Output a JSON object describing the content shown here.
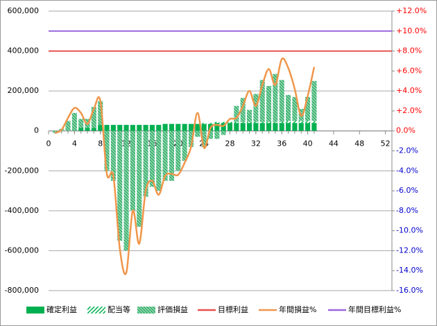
{
  "chart_data": {
    "type": "combo",
    "x": [
      1,
      2,
      3,
      4,
      5,
      6,
      7,
      8,
      9,
      10,
      11,
      12,
      13,
      14,
      15,
      16,
      17,
      18,
      19,
      20,
      21,
      22,
      23,
      24,
      25,
      26,
      27,
      28,
      29,
      30,
      31,
      32,
      33,
      34,
      35,
      36,
      37,
      38,
      39,
      40,
      41
    ],
    "xlim": [
      0,
      53
    ],
    "xticks": [
      0,
      4,
      8,
      12,
      16,
      20,
      24,
      28,
      32,
      36,
      40,
      44,
      48,
      52
    ],
    "ylim": [
      -800000,
      600000
    ],
    "yticks": [
      {
        "value": -800000,
        "label": "-800,000"
      },
      {
        "value": -600000,
        "label": "-600,000"
      },
      {
        "value": -400000,
        "label": "-400,000"
      },
      {
        "value": -200000,
        "label": "-200,000"
      },
      0,
      {
        "value": 200000,
        "label": "200,000"
      },
      {
        "value": 400000,
        "label": "400,000"
      },
      {
        "value": 600000,
        "label": "600,000"
      }
    ],
    "y2lim": [
      -16,
      12
    ],
    "y2ticks": [
      {
        "value": -16,
        "label": "-16.0%"
      },
      {
        "value": -14,
        "label": "-14.0%"
      },
      {
        "value": -12,
        "label": "-12.0%"
      },
      {
        "value": -10,
        "label": "-10.0%"
      },
      {
        "value": -8,
        "label": "-8.0%"
      },
      {
        "value": -6,
        "label": "-6.0%"
      },
      {
        "value": -4,
        "label": "-4.0%"
      },
      {
        "value": -2,
        "label": "-2.0%"
      },
      {
        "value": 0,
        "label": "0.0%"
      },
      {
        "value": 2,
        "label": "+2.0%"
      },
      {
        "value": 4,
        "label": "+4.0%"
      },
      {
        "value": 6,
        "label": "+6.0%"
      },
      {
        "value": 8,
        "label": "+8.0%"
      },
      {
        "value": 10,
        "label": "+10.0%"
      },
      {
        "value": 12,
        "label": "+12.0%"
      }
    ],
    "y2tick_colors": {
      "positive": "#ff0000",
      "negative": "#0000cc"
    },
    "grid": true,
    "legend": "bottom",
    "series": [
      {
        "name": "確定利益",
        "kind": "bar",
        "pattern": "solid",
        "color": "#00b050",
        "values": [
          0,
          0,
          0,
          0,
          15000,
          15000,
          15000,
          30000,
          30000,
          30000,
          30000,
          30000,
          30000,
          30000,
          30000,
          30000,
          30000,
          35000,
          35000,
          35000,
          35000,
          35000,
          35000,
          35000,
          35000,
          40000,
          40000,
          40000,
          40000,
          40000,
          40000,
          40000,
          40000,
          40000,
          40000,
          40000,
          40000,
          40000,
          40000,
          40000,
          40000
        ]
      },
      {
        "name": "配当等",
        "kind": "bar",
        "pattern": "light-hatch",
        "color": "#00b050",
        "values": [
          0,
          0,
          0,
          0,
          0,
          0,
          0,
          0,
          0,
          0,
          0,
          0,
          0,
          0,
          0,
          0,
          0,
          0,
          0,
          0,
          0,
          0,
          0,
          5000,
          5000,
          5000,
          5000,
          5000,
          5000,
          5000,
          5000,
          5000,
          5000,
          5000,
          5000,
          5000,
          10000,
          10000,
          10000,
          10000,
          10000
        ]
      },
      {
        "name": "評価損益",
        "kind": "bar",
        "pattern": "dense-hatch",
        "color": "#3cb371",
        "values": [
          -10000,
          10000,
          50000,
          90000,
          45000,
          45000,
          105000,
          120000,
          -200000,
          -250000,
          -550000,
          -600000,
          -400000,
          -480000,
          -330000,
          -280000,
          -300000,
          -250000,
          -250000,
          -200000,
          -150000,
          -80000,
          -30000,
          -80000,
          -40000,
          -40000,
          -20000,
          0,
          80000,
          120000,
          60000,
          140000,
          210000,
          180000,
          240000,
          210000,
          130000,
          120000,
          60000,
          120000,
          200000
        ]
      },
      {
        "name": "年間損益%",
        "kind": "line",
        "axis": "y2",
        "color": "#f0964a",
        "values": [
          -0.2,
          0.1,
          1.3,
          2.3,
          1.8,
          0.7,
          2.2,
          3.0,
          -4.3,
          -4.5,
          -11.8,
          -14.2,
          -8.0,
          -11.3,
          -6.0,
          -5.0,
          -6.4,
          -4.5,
          -4.3,
          -4.4,
          -3.2,
          -1.6,
          1.8,
          -1.7,
          0.3,
          0.6,
          0.5,
          1.2,
          1.3,
          2.5,
          4.0,
          2.5,
          4.6,
          6.2,
          4.6,
          7.2,
          6.3,
          4.2,
          1.5,
          3.5,
          6.4
        ]
      }
    ],
    "reference_lines": [
      {
        "name": "目標利益",
        "value": 400000,
        "color": "#e8504a"
      },
      {
        "name": "年間目標利益%",
        "value": 10,
        "axis": "y2",
        "color": "#9966dd"
      }
    ]
  }
}
